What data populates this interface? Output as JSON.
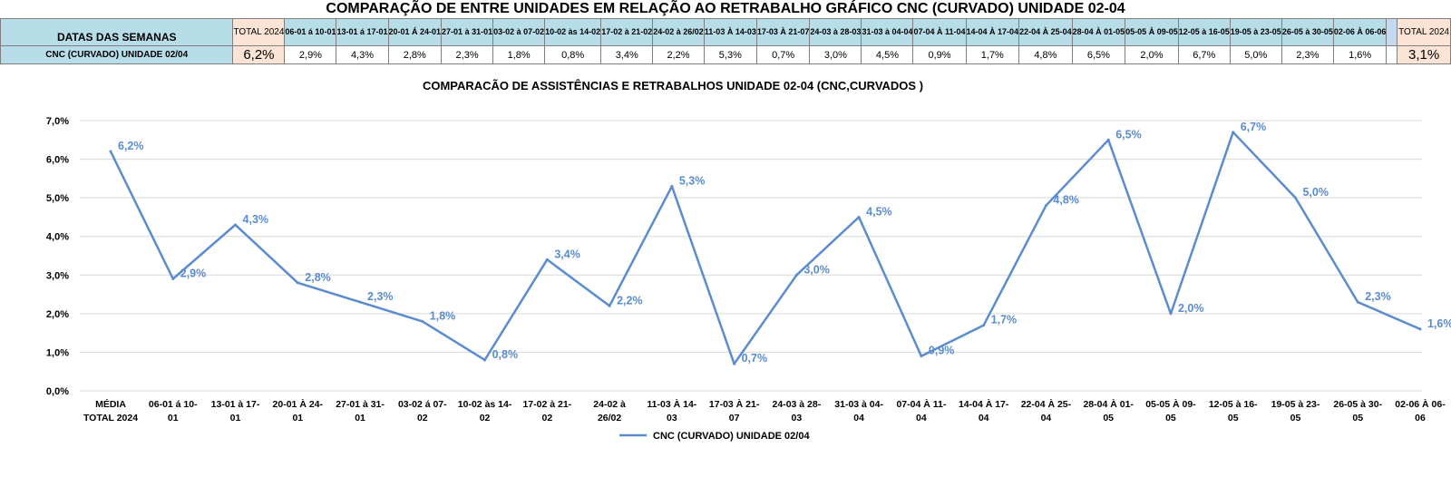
{
  "page_title": "COMPARAÇÃO DE ENTRE UNIDADES EM RELAÇÃO AO RETRABALHO GRÁFICO CNC (CURVADO) UNIDADE 02-04",
  "table": {
    "header_label": "DATAS DAS SEMANAS",
    "total_header": "TOTAL 2024",
    "week_headers": [
      "06-01 á 10-01",
      "13-01 á 17-01",
      "20-01 Á 24-01",
      "27-01 à 31-01",
      "03-02 à 07-02",
      "10-02 às 14-02",
      "17-02 à 21-02",
      "24-02 à 26/02",
      "11-03 À 14-03",
      "17-03 À 21-07",
      "24-03 à 28-03",
      "31-03 à 04-04",
      "07-04 À 11-04",
      "14-04 À 17-04",
      "22-04 À 25-04",
      "28-04 À 01-05",
      "05-05 À 09-05",
      "12-05 à 16-05",
      "19-05 à 23-05",
      "26-05 à 30-05",
      "02-06 À 06-06"
    ],
    "row_label": "CNC (CURVADO) UNIDADE 02/04",
    "total_left": "6,2%",
    "week_values": [
      "2,9%",
      "4,3%",
      "2,8%",
      "2,3%",
      "1,8%",
      "0,8%",
      "3,4%",
      "2,2%",
      "5,3%",
      "0,7%",
      "3,0%",
      "4,5%",
      "0,9%",
      "1,7%",
      "4,8%",
      "6,5%",
      "2,0%",
      "6,7%",
      "5,0%",
      "2,3%",
      "1,6%"
    ],
    "total_right": "3,1%"
  },
  "chart_data": {
    "type": "line",
    "title": "COMPARACÃO DE ASSISTÊNCIAS E RETRABALHOS UNIDADE 02-04  (CNC,CURVADOS )",
    "categories": [
      [
        "MÉDIA",
        "TOTAL 2024"
      ],
      [
        "06-01 á 10-",
        "01"
      ],
      [
        "13-01 à 17-",
        "01"
      ],
      [
        "20-01 À 24-",
        "01"
      ],
      [
        "27-01 à 31-",
        "01"
      ],
      [
        "03-02 á 07-",
        "02"
      ],
      [
        "10-02 às 14-",
        "02"
      ],
      [
        "17-02 à 21-",
        "02"
      ],
      [
        "24-02 à",
        "26/02"
      ],
      [
        "11-03 À 14-",
        "03"
      ],
      [
        "17-03 À 21-",
        "07"
      ],
      [
        "24-03 à 28-",
        "03"
      ],
      [
        "31-03 à 04-",
        "04"
      ],
      [
        "07-04 À 11-",
        "04"
      ],
      [
        "14-04 À 17-",
        "04"
      ],
      [
        "22-04 À 25-",
        "04"
      ],
      [
        "28-04 À 01-",
        "05"
      ],
      [
        "05-05 À 09-",
        "05"
      ],
      [
        "12-05 à 16-",
        "05"
      ],
      [
        "19-05 à 23-",
        "05"
      ],
      [
        "26-05 à 30-",
        "05"
      ],
      [
        "02-06 À 06-",
        "06"
      ]
    ],
    "series": [
      {
        "name": "CNC (CURVADO) UNIDADE 02/04",
        "values": [
          6.2,
          2.9,
          4.3,
          2.8,
          2.3,
          1.8,
          0.8,
          3.4,
          2.2,
          5.3,
          0.7,
          3.0,
          4.5,
          0.9,
          1.7,
          4.8,
          6.5,
          2.0,
          6.7,
          5.0,
          2.3,
          1.6
        ],
        "labels": [
          "6,2%",
          "2,9%",
          "4,3%",
          "2,8%",
          "2,3%",
          "1,8%",
          "0,8%",
          "3,4%",
          "2,2%",
          "5,3%",
          "0,7%",
          "3,0%",
          "4,5%",
          "0,9%",
          "1,7%",
          "4,8%",
          "6,5%",
          "2,0%",
          "6,7%",
          "5,0%",
          "2,3%",
          "1,6%"
        ]
      }
    ],
    "ylim": [
      0,
      7
    ],
    "yticks": [
      "0,0%",
      "1,0%",
      "2,0%",
      "3,0%",
      "4,0%",
      "5,0%",
      "6,0%",
      "7,0%"
    ],
    "grid": true,
    "legend_position": "bottom",
    "line_color": "#5b8ccf",
    "label_color": "#5b8ccf"
  }
}
